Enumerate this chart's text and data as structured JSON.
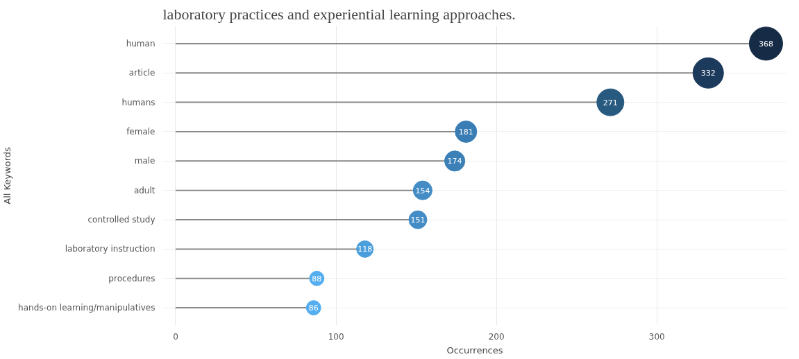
{
  "chart_data": {
    "type": "lollipop",
    "orientation": "horizontal",
    "xlabel": "Occurrences",
    "ylabel": "All Keywords",
    "annotations": [
      "laboratory practices and experiential learning approaches."
    ],
    "categories": [
      "human",
      "article",
      "humans",
      "female",
      "male",
      "adult",
      "controlled study",
      "laboratory instruction",
      "procedures",
      "hands-on learning/manipulatives"
    ],
    "values": [
      368,
      332,
      271,
      181,
      174,
      154,
      151,
      118,
      88,
      86
    ],
    "sizes": [
      1,
      0.84,
      0.66,
      0.42,
      0.37,
      0.32,
      0.29,
      0.25,
      0.19,
      0.19
    ],
    "colors": [
      "#162b45",
      "#1c3a5c",
      "#285a80",
      "#3a7db5",
      "#3c80b8",
      "#438cc6",
      "#438cc6",
      "#4a9edb",
      "#55aef0",
      "#55aef0"
    ],
    "xlim": [
      -8,
      381
    ],
    "xticks": [
      0,
      100,
      200,
      300
    ],
    "grid": true,
    "data_labels": true,
    "marker": "circle"
  }
}
